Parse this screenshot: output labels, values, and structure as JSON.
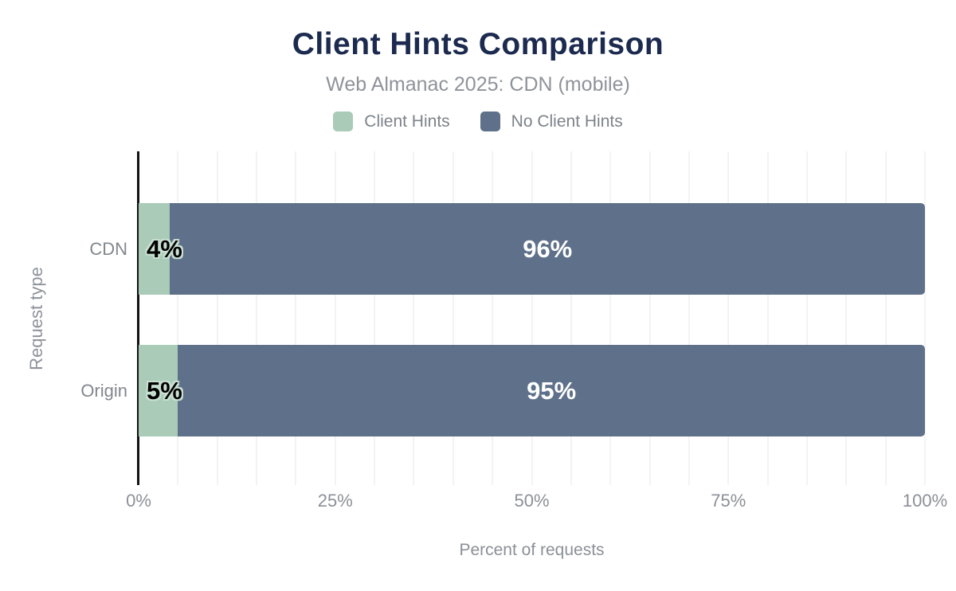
{
  "chart": {
    "title": "Client Hints Comparison",
    "subtitle": "Web Almanac 2025: CDN (mobile)",
    "xlabel": "Percent of requests",
    "ylabel": "Request type"
  },
  "colors": {
    "title": "#1b2a4e",
    "subtitle_gray": "#8e939a",
    "tick_gray": "#8b9097",
    "gridline": "#f3f3f3",
    "axis_line": "#121212",
    "client_hints_green": "#a9cbb7",
    "no_client_hints_blue": "#5f718a",
    "value_label_outline": "#c9dfd2",
    "value_label_on_blue": "#ffffff",
    "value_label_on_green": "#000000"
  },
  "chart_data": {
    "type": "bar",
    "orientation": "horizontal",
    "stacked": true,
    "title": "Client Hints Comparison",
    "subtitle": "Web Almanac 2025: CDN (mobile)",
    "xlabel": "Percent of requests",
    "ylabel": "Request type",
    "categories": [
      "CDN",
      "Origin"
    ],
    "series": [
      {
        "name": "Client Hints",
        "color": "#a9cbb7",
        "values": [
          4,
          5
        ]
      },
      {
        "name": "No Client Hints",
        "color": "#5f718a",
        "values": [
          96,
          95
        ]
      }
    ],
    "value_labels": [
      [
        "4%",
        "96%"
      ],
      [
        "5%",
        "95%"
      ]
    ],
    "xlim": [
      0,
      100
    ],
    "x_ticks": [
      {
        "label": "0%",
        "value": 0
      },
      {
        "label": "25%",
        "value": 25
      },
      {
        "label": "50%",
        "value": 50
      },
      {
        "label": "75%",
        "value": 75
      },
      {
        "label": "100%",
        "value": 100
      }
    ],
    "grid": "vertical, every 5%",
    "legend_position": "top"
  }
}
